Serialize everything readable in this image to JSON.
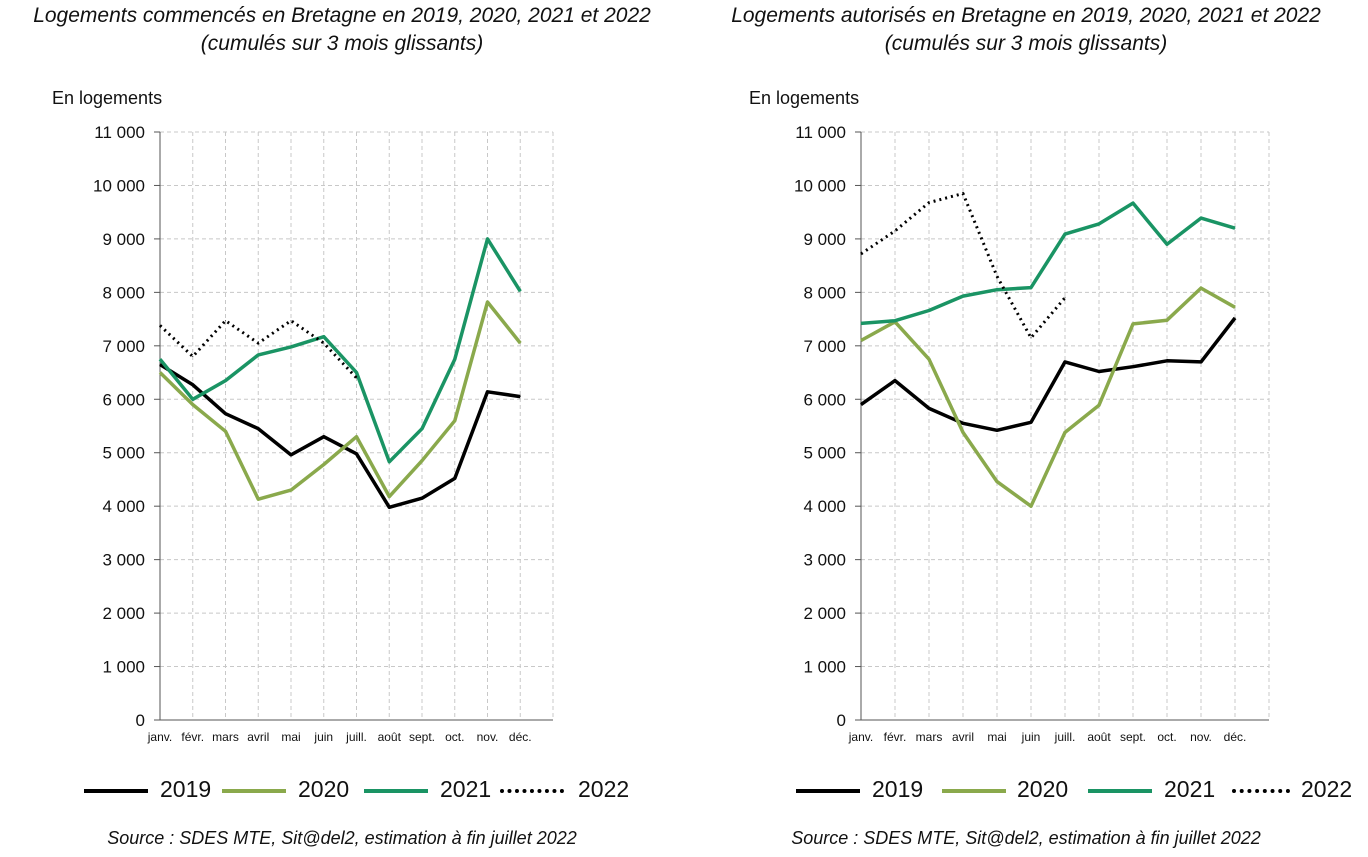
{
  "chart_data": [
    {
      "type": "line",
      "title": "Logements commencés en Bretagne en 2019, 2020, 2021 et 2022",
      "subtitle": "(cumulés sur 3 mois glissants)",
      "ylabel": "En logements",
      "ylim": [
        0,
        11000
      ],
      "yticks": [
        0,
        1000,
        2000,
        3000,
        4000,
        5000,
        6000,
        7000,
        8000,
        9000,
        10000,
        11000
      ],
      "ytick_labels": [
        "0",
        "1 000",
        "2 000",
        "3 000",
        "4 000",
        "5 000",
        "6 000",
        "7 000",
        "8 000",
        "9 000",
        "10 000",
        "11 000"
      ],
      "categories": [
        "janv.",
        "févr.",
        "mars",
        "avril",
        "mai",
        "juin",
        "juill.",
        "août",
        "sept.",
        "oct.",
        "nov.",
        "déc."
      ],
      "grid": true,
      "legend_position": "bottom",
      "source": "Source : SDES MTE, Sit@del2, estimation à fin juillet 2022",
      "series": [
        {
          "name": "2019",
          "color": "#000000",
          "style": "solid",
          "values": [
            6650,
            6270,
            5730,
            5450,
            4960,
            5300,
            4980,
            3980,
            4150,
            4520,
            6140,
            6050
          ]
        },
        {
          "name": "2020",
          "color": "#8aa94c",
          "style": "solid",
          "values": [
            6500,
            5900,
            5400,
            4130,
            4300,
            4780,
            5300,
            4180,
            4850,
            5600,
            7820,
            7050
          ]
        },
        {
          "name": "2021",
          "color": "#1a9464",
          "style": "solid",
          "values": [
            6750,
            6000,
            6350,
            6830,
            6980,
            7170,
            6500,
            4830,
            5450,
            6750,
            9000,
            8020
          ]
        },
        {
          "name": "2022",
          "color": "#000000",
          "style": "dotted",
          "values": [
            7380,
            6800,
            7470,
            7050,
            7470,
            7050,
            6400,
            null,
            null,
            null,
            null,
            null
          ]
        }
      ]
    },
    {
      "type": "line",
      "title": "Logements autorisés en Bretagne en 2019, 2020, 2021 et 2022",
      "subtitle": "(cumulés sur 3 mois glissants)",
      "ylabel": "En logements",
      "ylim": [
        0,
        11000
      ],
      "yticks": [
        0,
        1000,
        2000,
        3000,
        4000,
        5000,
        6000,
        7000,
        8000,
        9000,
        10000,
        11000
      ],
      "ytick_labels": [
        "0",
        "1 000",
        "2 000",
        "3 000",
        "4 000",
        "5 000",
        "6 000",
        "7 000",
        "8 000",
        "9 000",
        "10 000",
        "11 000"
      ],
      "categories": [
        "janv.",
        "févr.",
        "mars",
        "avril",
        "mai",
        "juin",
        "juill.",
        "août",
        "sept.",
        "oct.",
        "nov.",
        "déc."
      ],
      "grid": true,
      "legend_position": "bottom",
      "source": "Source : SDES MTE, Sit@del2, estimation à fin juillet 2022",
      "series": [
        {
          "name": "2019",
          "color": "#000000",
          "style": "solid",
          "values": [
            5900,
            6350,
            5830,
            5550,
            5420,
            5570,
            6700,
            6520,
            6610,
            6720,
            6700,
            7520
          ]
        },
        {
          "name": "2020",
          "color": "#8aa94c",
          "style": "solid",
          "values": [
            7100,
            7450,
            6750,
            5380,
            4460,
            4000,
            5380,
            5890,
            7410,
            7480,
            8080,
            7720
          ]
        },
        {
          "name": "2021",
          "color": "#1a9464",
          "style": "solid",
          "values": [
            7420,
            7470,
            7660,
            7930,
            8050,
            8090,
            9090,
            9280,
            9670,
            8900,
            9390,
            9200
          ]
        },
        {
          "name": "2022",
          "color": "#000000",
          "style": "dotted",
          "values": [
            8720,
            9150,
            9680,
            9850,
            8300,
            7150,
            7900,
            null,
            null,
            null,
            null,
            null
          ]
        }
      ]
    }
  ],
  "legend_labels": [
    "2019",
    "2020",
    "2021",
    "2022"
  ]
}
